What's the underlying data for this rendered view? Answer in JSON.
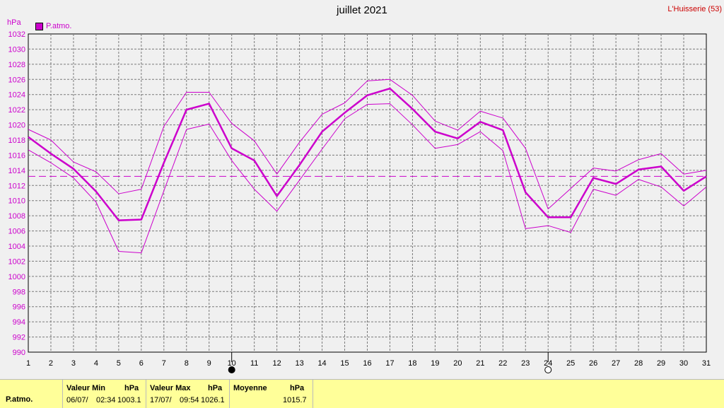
{
  "title": "juillet 2021",
  "location": "L'Huisserie (53)",
  "unit": "hPa",
  "legend": {
    "label": "P.atmo.",
    "color": "#cc00cc"
  },
  "summary": {
    "row_label": "P.atmo.",
    "min": {
      "label": "Valeur Min",
      "unit": "hPa",
      "date": "06/07/",
      "time": "02:34",
      "value": "1003.1"
    },
    "max": {
      "label": "Valeur Max",
      "unit": "hPa",
      "date": "17/07/",
      "time": "09:54",
      "value": "1026.1"
    },
    "avg": {
      "label": "Moyenne",
      "unit": "hPa",
      "value": "1015.7"
    }
  },
  "chart_data": {
    "type": "line",
    "title": "juillet 2021",
    "ylabel": "hPa",
    "xlim": [
      1,
      31
    ],
    "ylim": [
      990,
      1032
    ],
    "ytick_step": 2,
    "grid": true,
    "legend_position": "top-left",
    "x": [
      1,
      2,
      3,
      4,
      5,
      6,
      7,
      8,
      9,
      10,
      11,
      12,
      13,
      14,
      15,
      16,
      17,
      18,
      19,
      20,
      21,
      22,
      23,
      24,
      25,
      26,
      27,
      28,
      29,
      30,
      31
    ],
    "mean_line": 1013.2,
    "series": [
      {
        "name": "P.atmo.",
        "role": "avg",
        "values": [
          1018.4,
          1016.2,
          1014.2,
          1011.2,
          1007.4,
          1007.5,
          1015.0,
          1022.0,
          1022.8,
          1016.9,
          1015.3,
          1010.6,
          1014.7,
          1019.1,
          1021.6,
          1023.9,
          1024.8,
          1022.1,
          1019.1,
          1018.2,
          1020.4,
          1019.3,
          1011.1,
          1007.8,
          1007.8,
          1013.0,
          1012.2,
          1014.1,
          1014.5,
          1011.3,
          1013.2
        ]
      },
      {
        "role": "max",
        "values": [
          1019.4,
          1018.0,
          1015.1,
          1013.8,
          1010.9,
          1011.5,
          1019.8,
          1024.3,
          1024.3,
          1020.2,
          1017.9,
          1013.5,
          1017.7,
          1021.4,
          1022.9,
          1025.8,
          1026.0,
          1023.9,
          1020.5,
          1019.3,
          1021.8,
          1020.9,
          1016.9,
          1008.9,
          1011.6,
          1014.3,
          1013.9,
          1015.4,
          1016.2,
          1013.5,
          1014.0
        ]
      },
      {
        "role": "min",
        "values": [
          1016.7,
          1015.0,
          1013.0,
          1009.8,
          1003.3,
          1003.1,
          1011.3,
          1019.4,
          1020.1,
          1015.3,
          1011.5,
          1008.6,
          1012.7,
          1016.8,
          1020.8,
          1022.7,
          1022.8,
          1020.0,
          1016.9,
          1017.4,
          1019.1,
          1016.6,
          1006.3,
          1006.7,
          1005.8,
          1011.5,
          1010.7,
          1012.8,
          1011.8,
          1009.3,
          1011.8
        ]
      }
    ],
    "moon_phases": [
      {
        "day": 10,
        "phase": "new-moon"
      },
      {
        "day": 24,
        "phase": "full-moon"
      }
    ]
  }
}
